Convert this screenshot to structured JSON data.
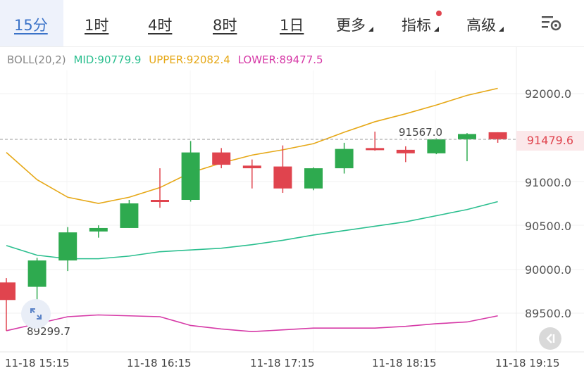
{
  "toolbar": {
    "tabs": [
      {
        "label": "15分",
        "active": true
      },
      {
        "label": "1时"
      },
      {
        "label": "4时"
      },
      {
        "label": "8时"
      },
      {
        "label": "1日"
      }
    ],
    "more_label": "更多",
    "indicator_label": "指标",
    "advanced_label": "高级"
  },
  "boll": {
    "name": "BOLL(20,2)",
    "mid": "MID:90779.9",
    "upper": "UPPER:92082.4",
    "lower": "LOWER:89477.5",
    "colors": {
      "name": "#888888",
      "mid": "#2bbf8f",
      "upper": "#e6a817",
      "lower": "#d63aa7"
    }
  },
  "price": {
    "current": "91479.6",
    "max_label": "91567.0",
    "min_label": "89299.7"
  },
  "y_axis": {
    "ticks": [
      "92000.0",
      "91000.0",
      "90500.0",
      "90000.0",
      "89500.0"
    ]
  },
  "x_axis": {
    "ticks": [
      "11-18 15:15",
      "11-18 16:15",
      "11-18 17:15",
      "11-18 18:15",
      "11-18 19:15"
    ]
  },
  "colors": {
    "up": "#2eaa4f",
    "down": "#e0444e",
    "text": "#333333"
  },
  "chart_data": {
    "type": "candlestick",
    "ylim": [
      89150,
      92450
    ],
    "candles": [
      {
        "o": 89850,
        "c": 89650,
        "h": 89900,
        "l": 89300
      },
      {
        "o": 89800,
        "c": 90100,
        "h": 90130,
        "l": 89550
      },
      {
        "o": 90100,
        "c": 90420,
        "h": 90480,
        "l": 89980
      },
      {
        "o": 90430,
        "c": 90470,
        "h": 90500,
        "l": 90360
      },
      {
        "o": 90470,
        "c": 90750,
        "h": 90790,
        "l": 90470
      },
      {
        "o": 90790,
        "c": 90770,
        "h": 91150,
        "l": 90700
      },
      {
        "o": 90790,
        "c": 91330,
        "h": 91460,
        "l": 90770
      },
      {
        "o": 91330,
        "c": 91190,
        "h": 91380,
        "l": 91150
      },
      {
        "o": 91180,
        "c": 91150,
        "h": 91250,
        "l": 90920
      },
      {
        "o": 91170,
        "c": 90920,
        "h": 91410,
        "l": 90870
      },
      {
        "o": 90920,
        "c": 91150,
        "h": 91160,
        "l": 90900
      },
      {
        "o": 91150,
        "c": 91370,
        "h": 91440,
        "l": 91090
      },
      {
        "o": 91380,
        "c": 91360,
        "h": 91567,
        "l": 91350
      },
      {
        "o": 91360,
        "c": 91320,
        "h": 91400,
        "l": 91220
      },
      {
        "o": 91320,
        "c": 91480,
        "h": 91490,
        "l": 91310
      },
      {
        "o": 91480,
        "c": 91540,
        "h": 91550,
        "l": 91230
      },
      {
        "o": 91560,
        "c": 91480,
        "h": 91560,
        "l": 91440
      }
    ],
    "upper": [
      91330,
      91020,
      90820,
      90750,
      90820,
      90930,
      91100,
      91210,
      91300,
      91360,
      91430,
      91560,
      91680,
      91770,
      91870,
      91980,
      92060
    ],
    "mid": [
      90270,
      90160,
      90120,
      90120,
      90150,
      90200,
      90220,
      90240,
      90280,
      90330,
      90390,
      90440,
      90490,
      90540,
      90610,
      90680,
      90770
    ],
    "lower": [
      89300,
      89380,
      89460,
      89480,
      89470,
      89460,
      89360,
      89320,
      89290,
      89310,
      89330,
      89330,
      89330,
      89350,
      89380,
      89400,
      89470
    ]
  }
}
